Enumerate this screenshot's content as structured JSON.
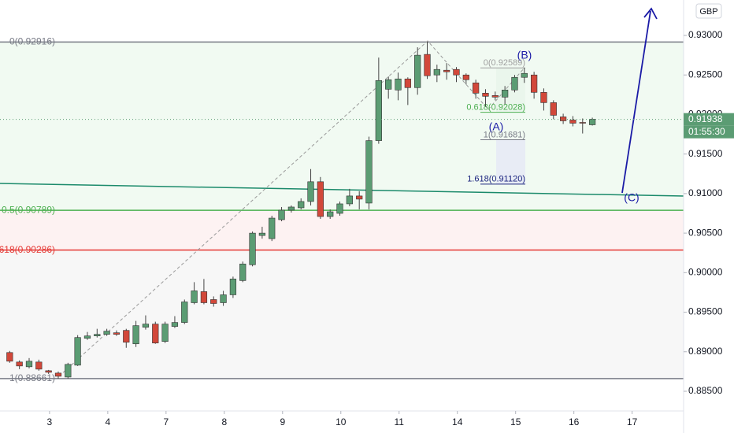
{
  "chart_data": {
    "type": "candlestick",
    "up_color": "#5b9c73",
    "down_color": "#d2483a",
    "currency": "GBP",
    "x": [
      0,
      1,
      2,
      3,
      4,
      5,
      6,
      7,
      8,
      9,
      10,
      11,
      12,
      13,
      14,
      15,
      16,
      17,
      18,
      19,
      20,
      21,
      22,
      23,
      24,
      25,
      26,
      27,
      28,
      29,
      30,
      31,
      32,
      33,
      34,
      35,
      36,
      37,
      38,
      39,
      40,
      41,
      42,
      43,
      44,
      45,
      46,
      47,
      48,
      49,
      50,
      51,
      52,
      53,
      54,
      55,
      56,
      57,
      58,
      59,
      60
    ],
    "open": [
      0.8899,
      0.8887,
      0.8881,
      0.8887,
      0.8876,
      0.8873,
      0.8868,
      0.8883,
      0.8917,
      0.892,
      0.8922,
      0.8924,
      0.8927,
      0.891,
      0.8931,
      0.8935,
      0.8913,
      0.8932,
      0.8937,
      0.8962,
      0.8976,
      0.8966,
      0.8962,
      0.8972,
      0.899,
      0.901,
      0.9047,
      0.9043,
      0.9067,
      0.9079,
      0.9082,
      0.909,
      0.9115,
      0.9071,
      0.9075,
      0.9087,
      0.9097,
      0.9088,
      0.9167,
      0.9232,
      0.9231,
      0.9245,
      0.9234,
      0.9276,
      0.925,
      0.9256,
      0.9257,
      0.925,
      0.924,
      0.9227,
      0.9224,
      0.9222,
      0.9231,
      0.9247,
      0.925,
      0.9228,
      0.9215,
      0.9197,
      0.9193,
      0.919,
      0.9187
    ],
    "high": [
      0.8901,
      0.8889,
      0.8892,
      0.889,
      0.8877,
      0.8875,
      0.8886,
      0.8921,
      0.8925,
      0.8929,
      0.8929,
      0.8927,
      0.8929,
      0.8939,
      0.8946,
      0.8938,
      0.8938,
      0.8945,
      0.8966,
      0.8988,
      0.8992,
      0.897,
      0.8977,
      0.8995,
      0.9014,
      0.9052,
      0.9058,
      0.9072,
      0.9083,
      0.9085,
      0.9094,
      0.9131,
      0.9121,
      0.908,
      0.909,
      0.9106,
      0.9103,
      0.9172,
      0.9272,
      0.9248,
      0.9253,
      0.9247,
      0.9285,
      0.9292,
      0.9263,
      0.9265,
      0.926,
      0.9252,
      0.9244,
      0.9232,
      0.9229,
      0.9236,
      0.925,
      0.9259,
      0.9254,
      0.9233,
      0.9218,
      0.9201,
      0.9198,
      0.9195,
      0.9196
    ],
    "low": [
      0.8886,
      0.8878,
      0.8879,
      0.8876,
      0.8872,
      0.8866,
      0.8866,
      0.8882,
      0.8915,
      0.8918,
      0.892,
      0.892,
      0.8905,
      0.8906,
      0.8928,
      0.891,
      0.8911,
      0.893,
      0.8935,
      0.896,
      0.896,
      0.8957,
      0.8958,
      0.8968,
      0.8988,
      0.9008,
      0.9043,
      0.904,
      0.9065,
      0.9076,
      0.908,
      0.9085,
      0.9068,
      0.9068,
      0.9072,
      0.9084,
      0.908,
      0.908,
      0.9163,
      0.922,
      0.9218,
      0.9212,
      0.9225,
      0.9245,
      0.9241,
      0.9244,
      0.9241,
      0.9238,
      0.922,
      0.921,
      0.9218,
      0.9213,
      0.9228,
      0.924,
      0.922,
      0.9205,
      0.9194,
      0.9188,
      0.9185,
      0.9176,
      0.9186
    ],
    "close": [
      0.8888,
      0.8882,
      0.8888,
      0.8878,
      0.8874,
      0.8869,
      0.8884,
      0.8918,
      0.892,
      0.8922,
      0.8926,
      0.8922,
      0.8912,
      0.8933,
      0.8935,
      0.8911,
      0.8935,
      0.8937,
      0.8963,
      0.8977,
      0.8962,
      0.8961,
      0.8972,
      0.8992,
      0.9011,
      0.905,
      0.905,
      0.9069,
      0.9079,
      0.9083,
      0.909,
      0.9115,
      0.9071,
      0.9077,
      0.9087,
      0.9097,
      0.9093,
      0.9167,
      0.9243,
      0.9244,
      0.9245,
      0.9234,
      0.9275,
      0.9249,
      0.9257,
      0.9254,
      0.925,
      0.9244,
      0.9227,
      0.9223,
      0.9222,
      0.9231,
      0.9247,
      0.9252,
      0.9228,
      0.9215,
      0.9199,
      0.9192,
      0.9189,
      0.9189,
      0.9194
    ],
    "xlim": [
      -1,
      69.4
    ],
    "xticks": [
      {
        "value": 4.1,
        "label": "3"
      },
      {
        "value": 10.1,
        "label": "4"
      },
      {
        "value": 16.1,
        "label": "7"
      },
      {
        "value": 22.1,
        "label": "8"
      },
      {
        "value": 28.1,
        "label": "9"
      },
      {
        "value": 34.1,
        "label": "10"
      },
      {
        "value": 40.1,
        "label": "11"
      },
      {
        "value": 46.1,
        "label": "14"
      },
      {
        "value": 52.1,
        "label": "15"
      },
      {
        "value": 58.1,
        "label": "16"
      },
      {
        "value": 64.1,
        "label": "17"
      }
    ],
    "ylim": [
      0.88271,
      0.93448
    ],
    "yticks": [
      {
        "value": 0.93,
        "label": "0.93000"
      },
      {
        "value": 0.925,
        "label": "0.92500"
      },
      {
        "value": 0.92,
        "label": "0.92000"
      },
      {
        "value": 0.915,
        "label": "0.91500"
      },
      {
        "value": 0.91,
        "label": "0.91000"
      },
      {
        "value": 0.905,
        "label": "0.90500"
      },
      {
        "value": 0.9,
        "label": "0.90000"
      },
      {
        "value": 0.895,
        "label": "0.89500"
      },
      {
        "value": 0.89,
        "label": "0.89000"
      },
      {
        "value": 0.885,
        "label": "0.88500"
      }
    ],
    "fib_levels": [
      {
        "label": "0(0.92916)",
        "value": 0.92916,
        "color": "#787b86"
      },
      {
        "label": "0.5(0.90789)",
        "value": 0.90789,
        "color": "#4caf50"
      },
      {
        "label": "618(0.90286)",
        "value": 0.90286,
        "color": "#e53935"
      },
      {
        "label": "1(0.88661)",
        "value": 0.88661,
        "color": "#787b86"
      }
    ],
    "extension_levels": [
      {
        "label": "0(0.92589)",
        "value": 0.92589,
        "color": "#9e9e9e"
      },
      {
        "label": "0.618(0.92028)",
        "value": 0.92028,
        "color": "#4caf50"
      },
      {
        "label": "1(0.91681)",
        "value": 0.91681,
        "color": "#787b86"
      },
      {
        "label": "1.618(0.91120)",
        "value": 0.9112,
        "color": "#1a237e"
      }
    ],
    "wave_labels": [
      "(A)",
      "(B)",
      "(C)"
    ],
    "current_price": 0.91938,
    "countdown": "01:55:30"
  }
}
